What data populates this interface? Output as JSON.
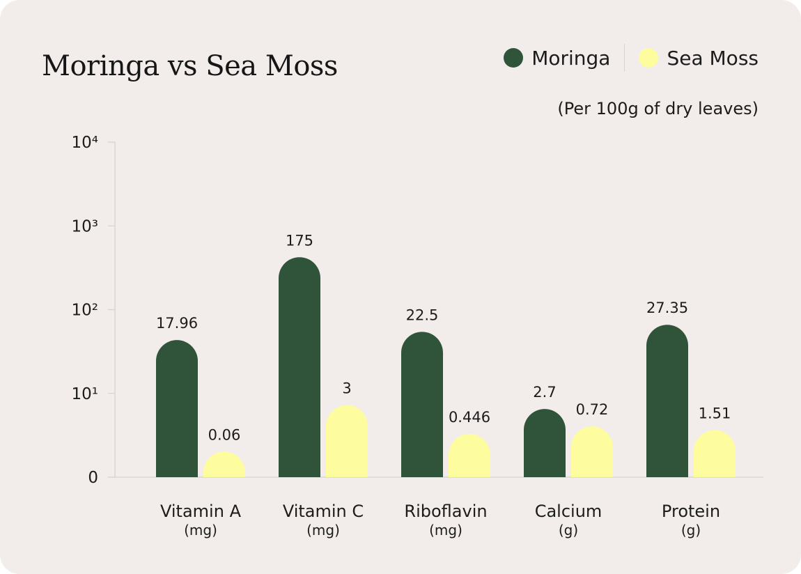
{
  "chart_data": {
    "type": "bar",
    "title": "Moringa vs Sea Moss",
    "subtitle": "(Per 100g of dry leaves)",
    "yscale": "log",
    "ylim": [
      0,
      10000
    ],
    "yticks": [
      {
        "value": 0,
        "label": "0"
      },
      {
        "value": 10,
        "label": "10¹"
      },
      {
        "value": 100,
        "label": "10²"
      },
      {
        "value": 1000,
        "label": "10³"
      },
      {
        "value": 10000,
        "label": "10⁴"
      }
    ],
    "categories": [
      "Vitamin A",
      "Vitamin C",
      "Riboflavin",
      "Calcium",
      "Protein"
    ],
    "units": [
      "(mg)",
      "(mg)",
      "(mg)",
      "(g)",
      "(g)"
    ],
    "legend_position": "top-right",
    "grid": false,
    "series": [
      {
        "name": "Moringa",
        "color": "#2f543a",
        "values": [
          17.96,
          175,
          22.5,
          2.7,
          27.35
        ],
        "labels": [
          "17.96",
          "175",
          "22.5",
          "2.7",
          "27.35"
        ]
      },
      {
        "name": "Sea Moss",
        "color": "#fdfc9e",
        "values": [
          0.06,
          3,
          0.446,
          0.72,
          1.51
        ],
        "labels": [
          "0.06",
          "3",
          "0.446",
          "0.72",
          "1.51"
        ]
      }
    ]
  }
}
